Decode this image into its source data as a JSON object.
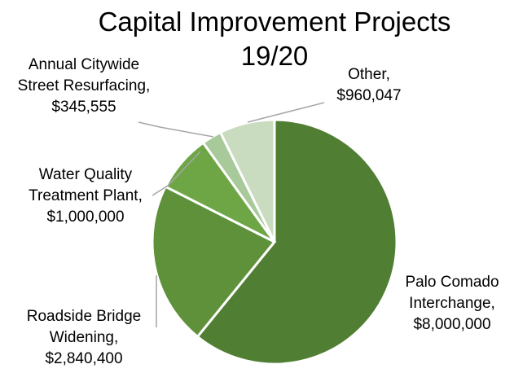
{
  "chart_data": {
    "type": "pie",
    "title": "Capital Improvement Projects 19/20",
    "categories": [
      "Palo Comado Interchange,",
      "Roadside Bridge Widening,",
      "Water Quality Treatment Plant,",
      "Annual Citywide Street Resurfacing,",
      "Other,"
    ],
    "values": [
      8000000,
      2840400,
      1000000,
      345555,
      960047
    ],
    "value_labels": [
      "$8,000,000",
      "$2,840,400",
      "$1,000,000",
      "$345,555",
      "$960,047"
    ],
    "colors": [
      "#507e32",
      "#5e9139",
      "#6ea646",
      "#a8c99a",
      "#c9dcc0"
    ]
  }
}
